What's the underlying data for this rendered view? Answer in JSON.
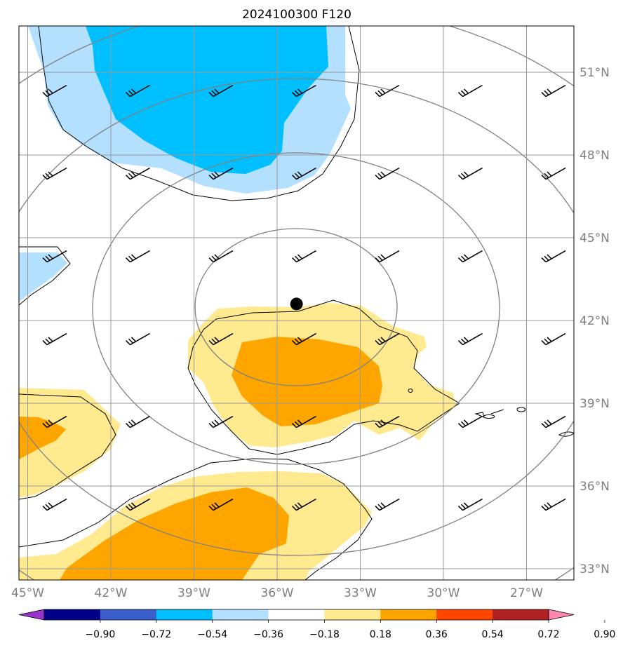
{
  "title": "2024100300 F120",
  "colors": {
    "blue_light": "#b3e0ff",
    "blue_mid": "#00bfff",
    "yellow": "#ffea8f",
    "orange": "#ffa500",
    "grid": "#999999",
    "contour": "#808080",
    "axis_label": "#7f7f7f"
  },
  "chart_data": {
    "type": "heatmap",
    "title": "2024100300 F120",
    "x_axis": {
      "ticks": [
        -45,
        -42,
        -39,
        -36,
        -33,
        -30,
        -27
      ],
      "tick_labels": [
        "45°W",
        "42°W",
        "39°W",
        "36°W",
        "33°W",
        "30°W",
        "27°W"
      ]
    },
    "y_axis": {
      "ticks": [
        51,
        48,
        45,
        42,
        39,
        36,
        33
      ],
      "tick_labels": [
        "51°N",
        "48°N",
        "45°N",
        "42°N",
        "39°N",
        "36°N",
        "33°N"
      ],
      "position": "right"
    },
    "lon_range": [
      -45,
      -25
    ],
    "lat_range": [
      32.5,
      52.5
    ],
    "grid": true,
    "center_marker": {
      "lon": -35.3,
      "lat": 42.6
    },
    "colorbar": {
      "orientation": "horizontal",
      "levels": [
        -0.9,
        -0.72,
        -0.54,
        -0.36,
        -0.18,
        0.18,
        0.36,
        0.54,
        0.72,
        0.9
      ],
      "level_labels": [
        "−0.90",
        "−0.72",
        "−0.54",
        "−0.36",
        "−0.18",
        "0.18",
        "0.36",
        "0.54",
        "0.72",
        "0.90"
      ],
      "colors": [
        "#9933cc",
        "#00008b",
        "#3b5fcd",
        "#00bfff",
        "#b3e0ff",
        "#ffffff",
        "#ffea8f",
        "#ffa500",
        "#ff4500",
        "#b22222",
        "#ff88b0"
      ]
    },
    "wind_barbs": [
      {
        "lon": -44,
        "lat": 50.3
      },
      {
        "lon": -41,
        "lat": 50.3
      },
      {
        "lon": -38,
        "lat": 50.3
      },
      {
        "lon": -35,
        "lat": 50.3
      },
      {
        "lon": -32,
        "lat": 50.3
      },
      {
        "lon": -29,
        "lat": 50.3
      },
      {
        "lon": -26,
        "lat": 50.3
      },
      {
        "lon": -44,
        "lat": 47.3
      },
      {
        "lon": -41,
        "lat": 47.3
      },
      {
        "lon": -38,
        "lat": 47.3
      },
      {
        "lon": -35,
        "lat": 47.3
      },
      {
        "lon": -32,
        "lat": 47.3
      },
      {
        "lon": -29,
        "lat": 47.3
      },
      {
        "lon": -26,
        "lat": 47.3
      },
      {
        "lon": -44,
        "lat": 44.3
      },
      {
        "lon": -41,
        "lat": 44.3
      },
      {
        "lon": -38,
        "lat": 44.3
      },
      {
        "lon": -35,
        "lat": 44.3
      },
      {
        "lon": -32,
        "lat": 44.3
      },
      {
        "lon": -29,
        "lat": 44.3
      },
      {
        "lon": -26,
        "lat": 44.3
      },
      {
        "lon": -44,
        "lat": 41.3
      },
      {
        "lon": -41,
        "lat": 41.3
      },
      {
        "lon": -38,
        "lat": 41.3
      },
      {
        "lon": -35,
        "lat": 41.3
      },
      {
        "lon": -32,
        "lat": 41.3
      },
      {
        "lon": -29,
        "lat": 41.3
      },
      {
        "lon": -26,
        "lat": 41.3
      },
      {
        "lon": -44,
        "lat": 38.3
      },
      {
        "lon": -41,
        "lat": 38.3
      },
      {
        "lon": -38,
        "lat": 38.3
      },
      {
        "lon": -35,
        "lat": 38.3
      },
      {
        "lon": -32,
        "lat": 38.3
      },
      {
        "lon": -29,
        "lat": 38.3
      },
      {
        "lon": -26,
        "lat": 38.3
      },
      {
        "lon": -44,
        "lat": 35.3
      },
      {
        "lon": -41,
        "lat": 35.3
      },
      {
        "lon": -38,
        "lat": 35.3
      },
      {
        "lon": -35,
        "lat": 35.3
      },
      {
        "lon": -32,
        "lat": 35.3
      },
      {
        "lon": -29,
        "lat": 35.3
      },
      {
        "lon": -26,
        "lat": 35.3
      }
    ]
  }
}
